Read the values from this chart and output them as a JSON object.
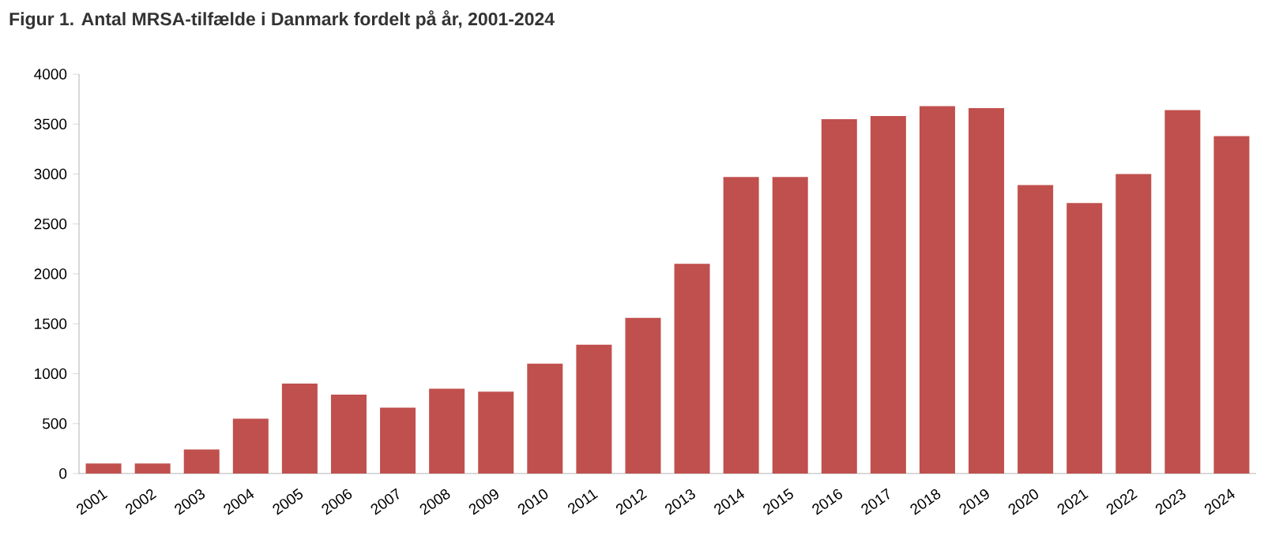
{
  "chart_data": {
    "type": "bar",
    "title": "Figur 1. Antal MRSA-tilfælde i Danmark fordelt på år, 2001-2024",
    "categories": [
      "2001",
      "2002",
      "2003",
      "2004",
      "2005",
      "2006",
      "2007",
      "2008",
      "2009",
      "2010",
      "2011",
      "2012",
      "2013",
      "2014",
      "2015",
      "2016",
      "2017",
      "2018",
      "2019",
      "2020",
      "2021",
      "2022",
      "2023",
      "2024"
    ],
    "values": [
      100,
      100,
      240,
      550,
      900,
      790,
      660,
      850,
      820,
      1100,
      1290,
      1560,
      2100,
      2970,
      2970,
      3550,
      3580,
      3680,
      3660,
      2890,
      2710,
      3000,
      3640,
      3380
    ],
    "color": "#c0504d",
    "ylim": [
      0,
      4000
    ],
    "yticks": [
      0,
      500,
      1000,
      1500,
      2000,
      2500,
      3000,
      3500,
      4000
    ],
    "grid": false
  }
}
